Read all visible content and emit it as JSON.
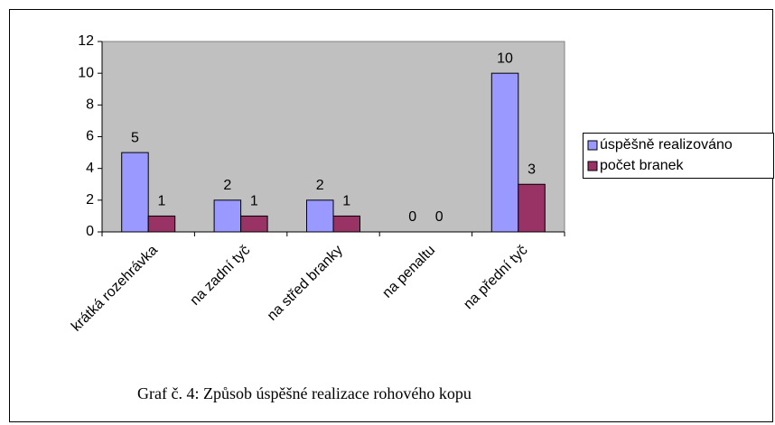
{
  "chart_data": {
    "type": "bar",
    "caption": "Graf č. 4: Způsob úspěšné realizace rohového kopu",
    "categories": [
      "krátká rozehrávka",
      "na zadní tyč",
      "na střed branky",
      "na penaltu",
      "na přední tyč"
    ],
    "series": [
      {
        "name": "úspěšně realizováno",
        "color": "#9999ff",
        "values": [
          5,
          2,
          2,
          0,
          10
        ]
      },
      {
        "name": "počet branek",
        "color": "#993366",
        "values": [
          1,
          1,
          1,
          0,
          3
        ]
      }
    ],
    "ylim": [
      0,
      12
    ],
    "yticks": [
      0,
      2,
      4,
      6,
      8,
      10,
      12
    ],
    "plot_background": "#c0c0c0",
    "legend": "right",
    "data_labels": true
  }
}
